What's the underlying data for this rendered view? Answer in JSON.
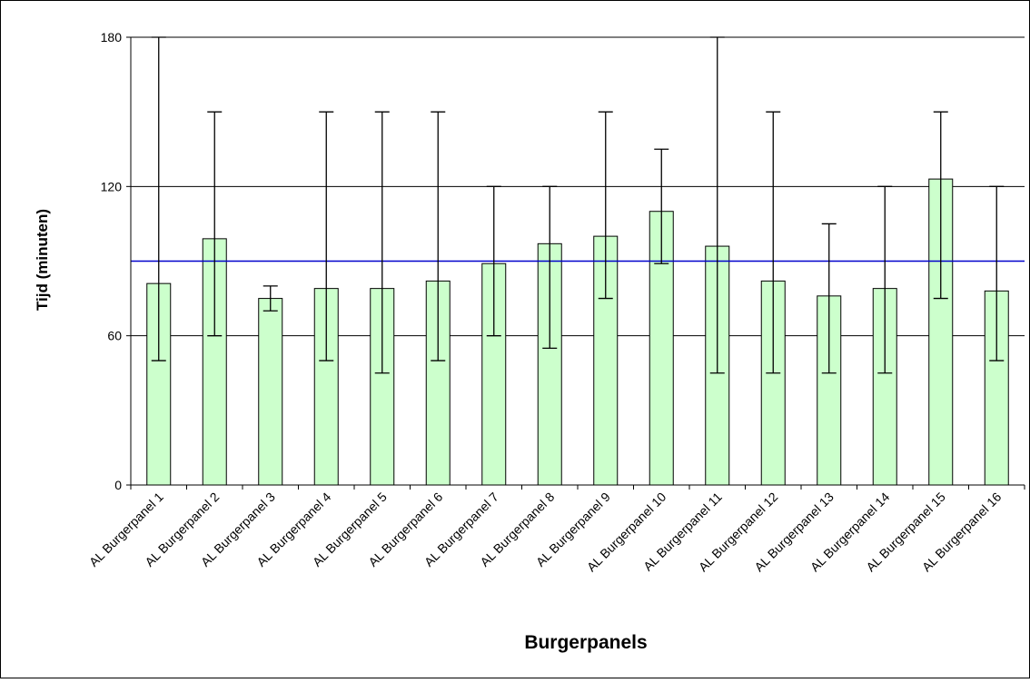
{
  "chart_data": {
    "type": "bar",
    "title": "",
    "xlabel": "Burgerpanels",
    "ylabel": "Tijd (minuten)",
    "ylim": [
      0,
      180
    ],
    "yticks": [
      0,
      60,
      120,
      180
    ],
    "grid": true,
    "categories": [
      "AL Burgerpanel 1",
      "AL Burgerpanel 2",
      "AL Burgerpanel 3",
      "AL Burgerpanel 4",
      "AL Burgerpanel 5",
      "AL Burgerpanel 6",
      "AL Burgerpanel 7",
      "AL Burgerpanel 8",
      "AL Burgerpanel 9",
      "AL Burgerpanel 10",
      "AL Burgerpanel 11",
      "AL Burgerpanel 12",
      "AL Burgerpanel 13",
      "AL Burgerpanel 14",
      "AL Burgerpanel 15",
      "AL Burgerpanel 16"
    ],
    "values": [
      81,
      99,
      75,
      79,
      79,
      82,
      89,
      97,
      100,
      110,
      96,
      82,
      76,
      79,
      123,
      78
    ],
    "error_low": [
      50,
      60,
      70,
      50,
      45,
      50,
      60,
      55,
      75,
      89,
      45,
      45,
      45,
      45,
      75,
      50
    ],
    "error_high": [
      180,
      150,
      80,
      150,
      150,
      150,
      120,
      120,
      150,
      135,
      180,
      150,
      105,
      120,
      150,
      120
    ],
    "reference_line": 90,
    "colors": {
      "bar_fill": "#ccffcc",
      "bar_stroke": "#000000",
      "reference_line": "#0000cc",
      "grid": "#000000"
    }
  }
}
